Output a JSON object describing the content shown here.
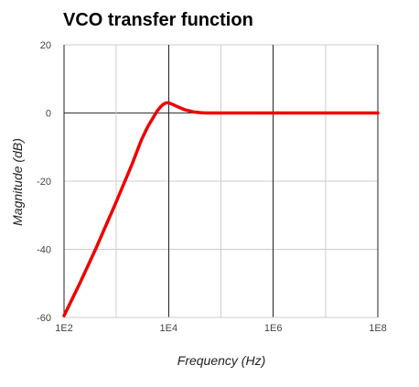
{
  "chart_data": {
    "type": "line",
    "title": "VCO transfer function",
    "xlabel": "Frequency (Hz)",
    "ylabel": "Magnitude (dB)",
    "x_scale": "log",
    "xlim": [
      100,
      100000000
    ],
    "ylim": [
      -60,
      20
    ],
    "x_major_ticks": [
      {
        "value": 100,
        "label": "1E2"
      },
      {
        "value": 10000,
        "label": "1E4"
      },
      {
        "value": 1000000,
        "label": "1E6"
      },
      {
        "value": 100000000,
        "label": "1E8"
      }
    ],
    "x_minor_gridlines": [
      1000,
      100000,
      10000000
    ],
    "y_ticks": [
      {
        "value": 20,
        "label": "20"
      },
      {
        "value": 0,
        "label": "0"
      },
      {
        "value": -20,
        "label": "-20"
      },
      {
        "value": -40,
        "label": "-40"
      },
      {
        "value": -60,
        "label": "-60"
      }
    ],
    "grid": true,
    "legend": "none",
    "series": [
      {
        "color": "#ee0000",
        "x": [
          100,
          200,
          400,
          1000,
          2000,
          3000,
          4000,
          5000,
          6000,
          7000,
          8000,
          9000,
          10000,
          12000,
          15000,
          20000,
          30000,
          40000,
          50000,
          70000,
          100000,
          200000,
          1000000,
          10000000,
          100000000
        ],
        "y": [
          -59.5,
          -50,
          -40,
          -26,
          -15,
          -8,
          -4,
          -1.5,
          0.5,
          1.8,
          2.6,
          3.0,
          3.0,
          2.5,
          1.8,
          1.0,
          0.3,
          0.1,
          0.0,
          0.0,
          0.0,
          0.0,
          0.0,
          0.0,
          0.0
        ]
      }
    ]
  }
}
